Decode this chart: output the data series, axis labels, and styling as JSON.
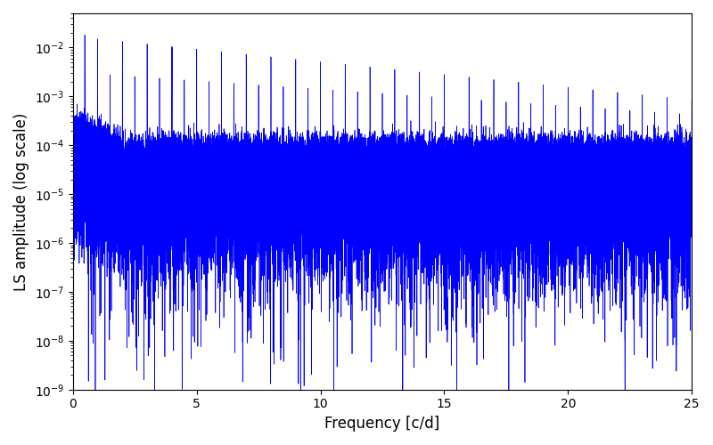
{
  "title": "",
  "xlabel": "Frequency [c/d]",
  "ylabel": "LS amplitude (log scale)",
  "xlim": [
    0,
    25
  ],
  "ylim": [
    1e-09,
    0.05
  ],
  "line_color": "#0000ff",
  "line_width": 0.5,
  "background_color": "#ffffff",
  "figsize": [
    8.0,
    5.0
  ],
  "dpi": 100,
  "seed": 42,
  "n_points": 80000,
  "freq_max": 25.0
}
